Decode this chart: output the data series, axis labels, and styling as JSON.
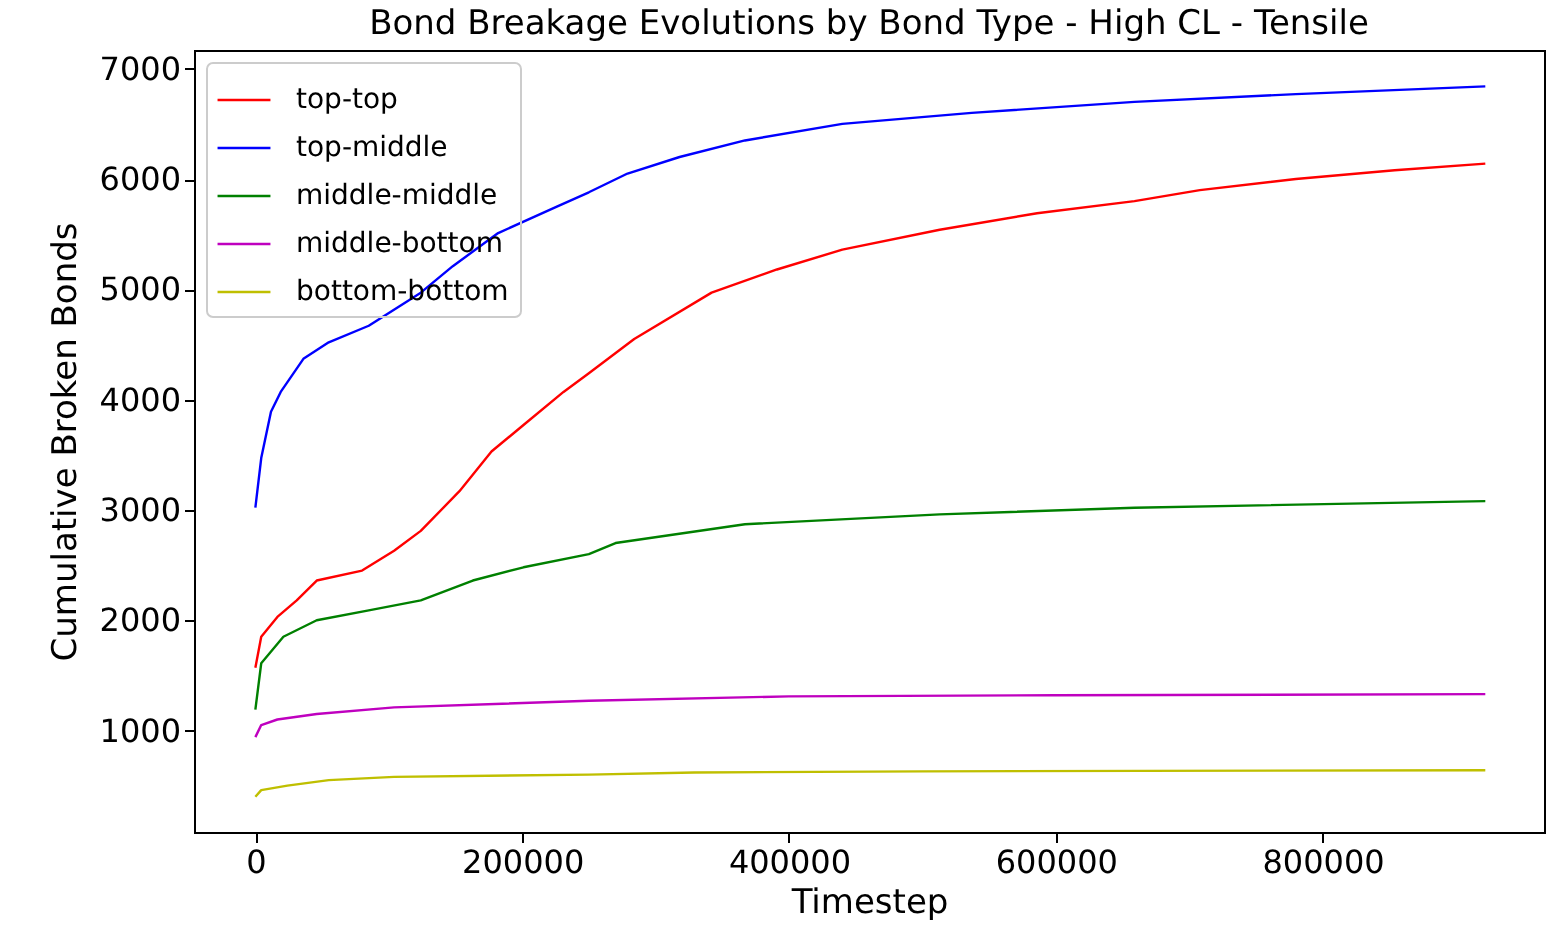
{
  "chart_data": {
    "type": "line",
    "title": "Bond Breakage Evolutions by Bond Type - High CL - Tensile",
    "xlabel": "Timestep",
    "ylabel": "Cumulative Broken Bonds",
    "xlim": [
      -46000,
      966000
    ],
    "xticks": [
      0,
      200000,
      400000,
      600000,
      800000
    ],
    "ylim": [
      80,
      7170
    ],
    "yticks": [
      1000,
      2000,
      3000,
      4000,
      5000,
      6000,
      7000
    ],
    "grid": false,
    "legend": "top left",
    "line_style": "solid",
    "marker": "none",
    "series": [
      {
        "name": "top-top",
        "color": "#ff0000",
        "x": [
          0,
          4400,
          16500,
          31000,
          46000,
          80000,
          104000,
          124000,
          153000,
          177000,
          201000,
          231000,
          250000,
          284000,
          342000,
          391000,
          440000,
          513000,
          586000,
          659000,
          708000,
          780000,
          854000,
          922000
        ],
        "values": [
          1570,
          1850,
          2030,
          2180,
          2360,
          2450,
          2630,
          2810,
          3170,
          3530,
          3770,
          4070,
          4240,
          4550,
          4970,
          5180,
          5360,
          5540,
          5690,
          5800,
          5900,
          6000,
          6080,
          6140
        ]
      },
      {
        "name": "top-middle",
        "color": "#0000ff",
        "x": [
          0,
          4400,
          11700,
          19000,
          36000,
          55000,
          85000,
          124000,
          148000,
          182000,
          226000,
          250000,
          279000,
          318000,
          367000,
          440000,
          537000,
          659000,
          780000,
          922000
        ],
        "values": [
          3020,
          3470,
          3890,
          4070,
          4370,
          4520,
          4670,
          4970,
          5210,
          5510,
          5750,
          5880,
          6050,
          6200,
          6350,
          6500,
          6600,
          6700,
          6770,
          6840
        ]
      },
      {
        "name": "middle-middle",
        "color": "#008000",
        "x": [
          0,
          4400,
          21000,
          46000,
          85000,
          124000,
          163000,
          201000,
          250000,
          270000,
          367000,
          513000,
          659000,
          922000
        ],
        "values": [
          1190,
          1610,
          1850,
          2000,
          2090,
          2180,
          2360,
          2480,
          2600,
          2700,
          2870,
          2960,
          3020,
          3080
        ]
      },
      {
        "name": "middle-bottom",
        "color": "#bf00bf",
        "x": [
          0,
          4400,
          16500,
          46000,
          104000,
          250000,
          400000,
          600000,
          922000
        ],
        "values": [
          940,
          1050,
          1100,
          1150,
          1210,
          1270,
          1310,
          1320,
          1330
        ]
      },
      {
        "name": "bottom-bottom",
        "color": "#bfbf00",
        "x": [
          0,
          4400,
          24000,
          55000,
          104000,
          250000,
          329000,
          500000,
          922000
        ],
        "values": [
          400,
          460,
          500,
          550,
          580,
          600,
          620,
          630,
          640
        ]
      }
    ]
  }
}
